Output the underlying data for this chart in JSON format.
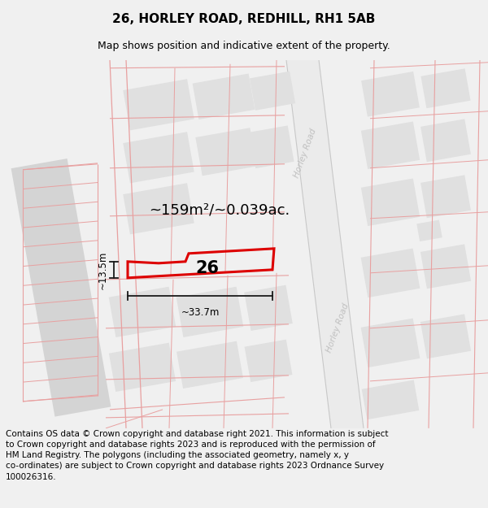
{
  "title": "26, HORLEY ROAD, REDHILL, RH1 5AB",
  "subtitle": "Map shows position and indicative extent of the property.",
  "footer": "Contains OS data © Crown copyright and database right 2021. This information is subject\nto Crown copyright and database rights 2023 and is reproduced with the permission of\nHM Land Registry. The polygons (including the associated geometry, namely x, y\nco-ordinates) are subject to Crown copyright and database rights 2023 Ordnance Survey\n100026316.",
  "area_label": "~159m²/~0.039ac.",
  "width_label": "~33.7m",
  "height_label": "~13.5m",
  "number_label": "26",
  "road_label": "Horley Road",
  "bg_color": "#f0f0f0",
  "map_bg": "#ffffff",
  "block_color_dark": "#d4d4d4",
  "block_color_light": "#e0e0e0",
  "road_bg_color": "#e4e4e4",
  "road_edge_color": "#c8c8c8",
  "street_line_color": "#e8a0a0",
  "highlight_color": "#dd0000",
  "dim_line_color": "#1a1a1a",
  "road_text_color": "#c0c0c0",
  "title_fontsize": 11,
  "subtitle_fontsize": 9,
  "area_fontsize": 13,
  "footer_fontsize": 7.5,
  "number_fontsize": 15
}
